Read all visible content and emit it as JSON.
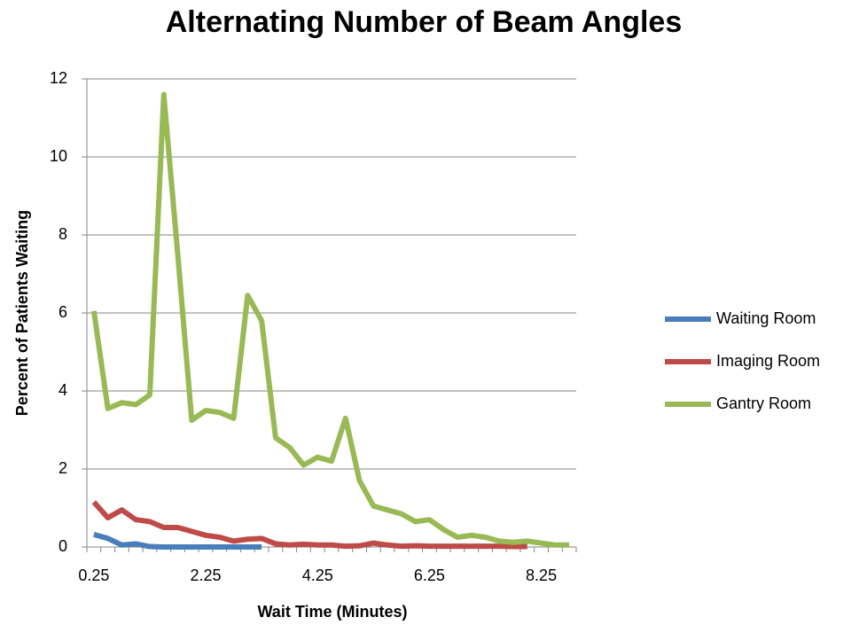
{
  "chart_data": {
    "type": "line",
    "title": "Alternating Number of Beam Angles",
    "x_label": "Wait Time (Minutes)",
    "y_label": "Percent of Patients Waiting",
    "categories": [
      "0.25",
      null,
      null,
      null,
      null,
      null,
      null,
      null,
      "2.25",
      null,
      null,
      null,
      null,
      null,
      null,
      null,
      "4.25",
      null,
      null,
      null,
      null,
      null,
      null,
      null,
      "6.25",
      null,
      null,
      null,
      null,
      null,
      null,
      null,
      "8.25",
      null,
      null
    ],
    "series": [
      {
        "name": "Waiting Room",
        "color": "#4a7ebb",
        "values": [
          0.32,
          0.22,
          0.05,
          0.08,
          0.01,
          0,
          0,
          0,
          0,
          0,
          0,
          0,
          0,
          null,
          null,
          null,
          null,
          null,
          null,
          null,
          null,
          null,
          null,
          null,
          null,
          null,
          null,
          null,
          null,
          null,
          null,
          null,
          null,
          null,
          null
        ]
      },
      {
        "name": "Imaging Room",
        "color": "#be4b48",
        "values": [
          1.15,
          0.75,
          0.95,
          0.7,
          0.65,
          0.5,
          0.5,
          0.4,
          0.3,
          0.25,
          0.15,
          0.2,
          0.22,
          0.08,
          0.05,
          0.07,
          0.05,
          0.05,
          0.02,
          0.03,
          0.1,
          0.05,
          0.02,
          0.03,
          0.02,
          0.02,
          0.02,
          0.02,
          0.02,
          0.02,
          0.01,
          0.01,
          null,
          null,
          null
        ]
      },
      {
        "name": "Gantry Room",
        "color": "#98b954",
        "values": [
          6.05,
          3.55,
          3.7,
          3.65,
          3.9,
          11.6,
          7.5,
          3.25,
          3.5,
          3.45,
          3.3,
          6.45,
          5.8,
          2.8,
          2.55,
          2.1,
          2.3,
          2.2,
          3.3,
          1.7,
          1.05,
          0.95,
          0.85,
          0.65,
          0.7,
          0.45,
          0.25,
          0.3,
          0.25,
          0.15,
          0.12,
          0.15,
          0.1,
          0.05,
          0.05
        ]
      }
    ],
    "ylim": [
      0,
      12
    ],
    "yticks": [
      0,
      2,
      4,
      6,
      8,
      10,
      12
    ],
    "grid": true,
    "legend": "right"
  }
}
